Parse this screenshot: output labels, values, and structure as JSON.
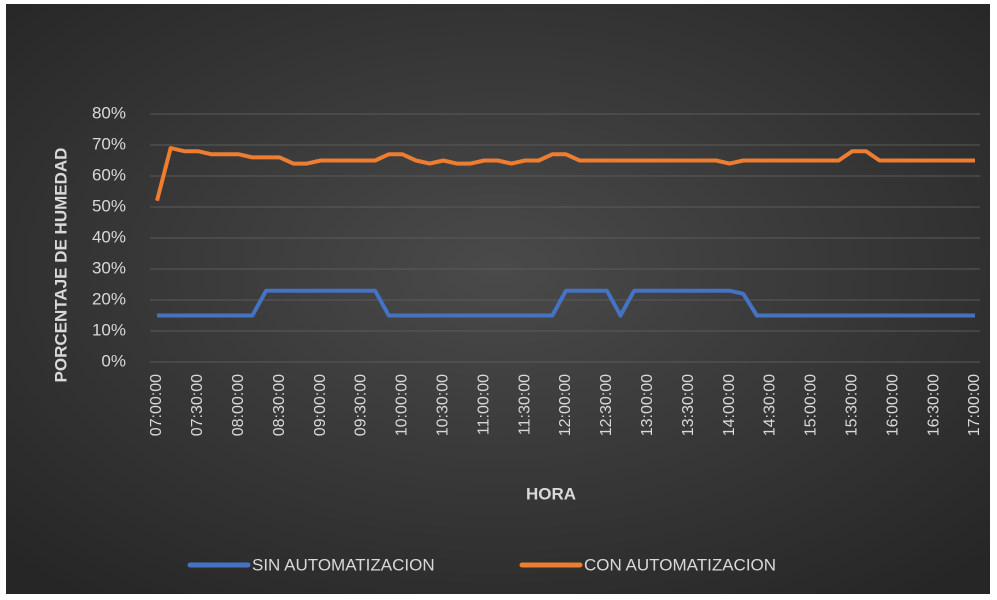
{
  "chart_data": {
    "type": "line",
    "x_label": "HORA",
    "y_label": "PORCENTAJE DE HUMEDAD",
    "categories": [
      "07:00:00",
      null,
      null,
      "07:30:00",
      null,
      null,
      "08:00:00",
      null,
      null,
      "08:30:00",
      null,
      null,
      "09:00:00",
      null,
      null,
      "09:30:00",
      null,
      null,
      "10:00:00",
      null,
      null,
      "10:30:00",
      null,
      null,
      "11:00:00",
      null,
      null,
      "11:30:00",
      null,
      null,
      "12:00:00",
      null,
      null,
      "12:30:00",
      null,
      null,
      "13:00:00",
      null,
      null,
      "13:30:00",
      null,
      null,
      "14:00:00",
      null,
      null,
      "14:30:00",
      null,
      null,
      "15:00:00",
      null,
      null,
      "15:30:00",
      null,
      null,
      "16:00:00",
      null,
      null,
      "16:30:00",
      null,
      null,
      "17:00:00"
    ],
    "series": [
      {
        "name": "SIN AUTOMATIZACION",
        "color": "#4472c4",
        "values": [
          15,
          15,
          15,
          15,
          15,
          15,
          15,
          15,
          23,
          23,
          23,
          23,
          23,
          23,
          23,
          23,
          23,
          15,
          15,
          15,
          15,
          15,
          15,
          15,
          15,
          15,
          15,
          15,
          15,
          15,
          23,
          23,
          23,
          23,
          15,
          23,
          23,
          23,
          23,
          23,
          23,
          23,
          23,
          22,
          15,
          15,
          15,
          15,
          15,
          15,
          15,
          15,
          15,
          15,
          15,
          15,
          15,
          15,
          15,
          15,
          15
        ]
      },
      {
        "name": "CON AUTOMATIZACION",
        "color": "#ed7d31",
        "values": [
          52,
          69,
          68,
          68,
          67,
          67,
          67,
          66,
          66,
          66,
          64,
          64,
          65,
          65,
          65,
          65,
          65,
          67,
          67,
          65,
          64,
          65,
          64,
          64,
          65,
          65,
          64,
          65,
          65,
          67,
          67,
          65,
          65,
          65,
          65,
          65,
          65,
          65,
          65,
          65,
          65,
          65,
          64,
          65,
          65,
          65,
          65,
          65,
          65,
          65,
          65,
          68,
          68,
          65,
          65,
          65,
          65,
          65,
          65,
          65,
          65
        ]
      }
    ],
    "ylim": [
      0,
      80
    ],
    "yticks": [
      {
        "value": 0,
        "label": "0%"
      },
      {
        "value": 10,
        "label": "10%"
      },
      {
        "value": 20,
        "label": "20%"
      },
      {
        "value": 30,
        "label": "30%"
      },
      {
        "value": 40,
        "label": "40%"
      },
      {
        "value": 50,
        "label": "50%"
      },
      {
        "value": 60,
        "label": "60%"
      },
      {
        "value": 70,
        "label": "70%"
      },
      {
        "value": 80,
        "label": "80%"
      }
    ],
    "grid": true,
    "legend": "bottom"
  }
}
